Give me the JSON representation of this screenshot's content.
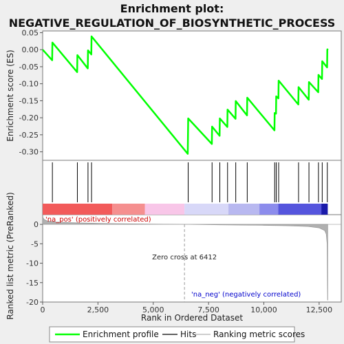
{
  "chart_data": {
    "type": "line",
    "title_line1": "Enrichment plot:",
    "title_line2": "NEGATIVE_REGULATION_OF_BIOSYNTHETIC_PROCESS",
    "xlabel": "Rank in Ordered Dataset",
    "ylabel_top": "Enrichment score (ES)",
    "ylabel_bottom": "Ranked list metric (PreRanked)",
    "xlim": [
      0,
      13500
    ],
    "es_ylim": [
      -0.325,
      0.055
    ],
    "metric_ylim": [
      -20,
      2.5
    ],
    "x_ticks": [
      0,
      2500,
      5000,
      7500,
      10000,
      12500
    ],
    "x_tick_labels": [
      "0",
      "2,500",
      "5,000",
      "7,500",
      "10,000",
      "12,500"
    ],
    "es_ticks": [
      0.05,
      0.0,
      -0.05,
      -0.1,
      -0.15,
      -0.2,
      -0.25,
      -0.3
    ],
    "es_tick_labels": [
      "0.05",
      "0.00",
      "-0.05",
      "-0.10",
      "-0.15",
      "-0.20",
      "-0.25",
      "-0.30"
    ],
    "metric_ticks": [
      0,
      -5,
      -10,
      -15,
      -20
    ],
    "metric_tick_labels": [
      "0",
      "-5",
      "-10",
      "-15",
      "-20"
    ],
    "enrichment_profile": {
      "name": "Enrichment profile",
      "color": "#00ff00",
      "points": [
        [
          0,
          0.0
        ],
        [
          430,
          -0.031
        ],
        [
          440,
          0.021
        ],
        [
          1560,
          -0.066
        ],
        [
          1570,
          -0.016
        ],
        [
          2040,
          -0.055
        ],
        [
          2050,
          -0.002
        ],
        [
          2200,
          -0.014
        ],
        [
          2210,
          0.039
        ],
        [
          6560,
          -0.306
        ],
        [
          6570,
          -0.254
        ],
        [
          6580,
          -0.202
        ],
        [
          7650,
          -0.277
        ],
        [
          7660,
          -0.226
        ],
        [
          8000,
          -0.253
        ],
        [
          8010,
          -0.202
        ],
        [
          8350,
          -0.227
        ],
        [
          8360,
          -0.176
        ],
        [
          8720,
          -0.203
        ],
        [
          8730,
          -0.151
        ],
        [
          9240,
          -0.193
        ],
        [
          9250,
          -0.141
        ],
        [
          10480,
          -0.237
        ],
        [
          10490,
          -0.186
        ],
        [
          10550,
          -0.188
        ],
        [
          10560,
          -0.137
        ],
        [
          10660,
          -0.143
        ],
        [
          10670,
          -0.091
        ],
        [
          11560,
          -0.161
        ],
        [
          11570,
          -0.11
        ],
        [
          12030,
          -0.147
        ],
        [
          12040,
          -0.095
        ],
        [
          12460,
          -0.125
        ],
        [
          12470,
          -0.074
        ],
        [
          12630,
          -0.086
        ],
        [
          12640,
          -0.034
        ],
        [
          12860,
          -0.052
        ],
        [
          12870,
          0.0
        ],
        [
          12890,
          0.003
        ]
      ]
    },
    "hits": [
      440,
      1570,
      2050,
      2210,
      6580,
      7660,
      8010,
      8360,
      8730,
      9250,
      10490,
      10560,
      10670,
      11570,
      12040,
      12470,
      12640,
      12870
    ],
    "hits_color": "#000000",
    "ranking_metric": {
      "name": "Ranking metric scores",
      "color": "#b0b0b0",
      "points": [
        [
          0,
          2.0
        ],
        [
          60,
          1.3
        ],
        [
          200,
          0.9
        ],
        [
          600,
          0.6
        ],
        [
          1500,
          0.4
        ],
        [
          3000,
          0.22
        ],
        [
          5000,
          0.08
        ],
        [
          6412,
          0.0
        ],
        [
          8000,
          -0.12
        ],
        [
          10000,
          -0.25
        ],
        [
          11000,
          -0.35
        ],
        [
          12000,
          -0.55
        ],
        [
          12500,
          -0.9
        ],
        [
          12750,
          -1.6
        ],
        [
          12820,
          -2.5
        ],
        [
          12860,
          -5.0
        ],
        [
          12880,
          -19.5
        ],
        [
          12890,
          -19.5
        ]
      ]
    },
    "zero_cross_rank": 6412,
    "zero_cross_label": "Zero cross at 6412",
    "pos_label": "'na_pos' (positively correlated)",
    "pos_label_color": "#cc0000",
    "neg_label": "'na_neg' (negatively correlated)",
    "neg_label_color": "#0000cc",
    "color_bar": [
      {
        "from": 0,
        "to": 3150,
        "color": "#f25a5a"
      },
      {
        "from": 3150,
        "to": 4620,
        "color": "#f58f8f"
      },
      {
        "from": 4620,
        "to": 6412,
        "color": "#f8c6e8"
      },
      {
        "from": 6412,
        "to": 8400,
        "color": "#d8d8f8"
      },
      {
        "from": 8400,
        "to": 9800,
        "color": "#b8b8f0"
      },
      {
        "from": 9800,
        "to": 10650,
        "color": "#8c8cec"
      },
      {
        "from": 10650,
        "to": 12600,
        "color": "#5555dd"
      },
      {
        "from": 12600,
        "to": 12890,
        "color": "#1a1aaa"
      }
    ],
    "legend": [
      {
        "label": "Enrichment profile",
        "color": "#00ff00"
      },
      {
        "label": "Hits",
        "color": "#000000"
      },
      {
        "label": "Ranking metric scores",
        "color": "#b0b0b0"
      }
    ]
  }
}
